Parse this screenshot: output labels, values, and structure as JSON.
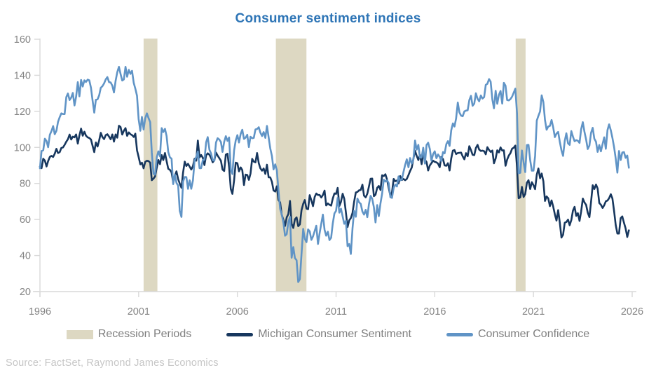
{
  "title": "Consumer sentiment indices",
  "source": "Source: FactSet, Raymond James Economics",
  "colors": {
    "title": "#2E75B6",
    "axis": "#D9D9D9",
    "tick_label": "#858585",
    "legend_text": "#7f7f7f",
    "source_text": "#C6C6C6",
    "recession_band": "#DDD8C2",
    "michigan_line": "#17375E",
    "confidence_line": "#6094C6"
  },
  "legend": [
    {
      "label": "Recession Periods",
      "type": "band",
      "color": "#DDD8C2"
    },
    {
      "label": "Michigan Consumer Sentiment",
      "type": "line",
      "color": "#17375E"
    },
    {
      "label": "Consumer Confidence",
      "type": "line",
      "color": "#6094C6"
    }
  ],
  "chart_data": {
    "type": "line",
    "title": "Consumer sentiment indices",
    "xlabel": "",
    "ylabel": "",
    "grid": false,
    "legend_position": "bottom",
    "x_range": [
      1996,
      2026
    ],
    "y_range": [
      20,
      160
    ],
    "x_ticks": [
      1996,
      2001,
      2006,
      2011,
      2016,
      2021,
      2026
    ],
    "y_ticks": [
      20,
      40,
      60,
      80,
      100,
      120,
      140,
      160
    ],
    "x_start": 1996.0,
    "x_step": 0.0833,
    "recession_periods": [
      [
        2001.25,
        2001.95
      ],
      [
        2007.95,
        2009.5
      ],
      [
        2020.1,
        2020.6
      ]
    ],
    "series": [
      {
        "name": "Michigan Consumer Sentiment",
        "color": "#17375E",
        "values": [
          89.3,
          88.5,
          93.7,
          92.7,
          89.4,
          92.4,
          94.7,
          95.3,
          94.7,
          96.5,
          99.2,
          96.9,
          97.4,
          99.7,
          100.0,
          101.4,
          103.2,
          104.5,
          107.1,
          104.4,
          106.0,
          105.6,
          107.2,
          102.1,
          106.6,
          110.4,
          106.5,
          108.7,
          106.5,
          105.6,
          105.2,
          104.4,
          100.9,
          97.4,
          102.7,
          100.5,
          103.9,
          108.1,
          105.7,
          104.6,
          106.8,
          107.3,
          106.0,
          104.5,
          107.2,
          103.2,
          107.2,
          105.4,
          112.0,
          111.3,
          107.1,
          109.2,
          110.7,
          106.4,
          108.3,
          107.3,
          106.8,
          105.8,
          107.6,
          98.4,
          94.7,
          90.6,
          91.5,
          88.4,
          92.0,
          92.6,
          92.4,
          91.5,
          81.8,
          82.7,
          83.9,
          88.8,
          93.0,
          90.7,
          95.7,
          93.0,
          96.9,
          92.4,
          88.1,
          87.6,
          86.1,
          80.6,
          84.2,
          86.7,
          82.4,
          79.9,
          77.6,
          86.0,
          92.1,
          89.7,
          90.9,
          89.3,
          87.7,
          89.6,
          93.7,
          92.6,
          103.8,
          94.4,
          95.8,
          94.2,
          90.2,
          95.6,
          96.7,
          95.9,
          94.2,
          91.7,
          92.8,
          97.1,
          95.5,
          94.1,
          92.6,
          87.7,
          86.9,
          96.0,
          96.5,
          89.1,
          76.9,
          74.2,
          81.6,
          91.5,
          91.2,
          86.7,
          88.9,
          87.4,
          79.1,
          84.9,
          84.7,
          82.0,
          85.4,
          93.6,
          92.1,
          91.7,
          96.9,
          91.3,
          88.4,
          87.1,
          88.3,
          85.3,
          90.4,
          83.4,
          83.4,
          80.9,
          76.1,
          75.5,
          78.4,
          70.8,
          69.5,
          62.6,
          59.8,
          56.4,
          61.2,
          63.0,
          70.3,
          57.6,
          55.3,
          60.1,
          61.2,
          56.3,
          57.3,
          65.1,
          68.7,
          70.8,
          66.0,
          65.7,
          73.5,
          70.6,
          67.4,
          72.5,
          74.4,
          73.6,
          73.6,
          72.2,
          73.6,
          76.0,
          67.8,
          68.9,
          68.2,
          67.7,
          71.6,
          74.5,
          74.2,
          77.5,
          67.5,
          69.8,
          74.3,
          71.5,
          63.7,
          55.8,
          59.5,
          60.8,
          63.7,
          69.9,
          75.0,
          75.3,
          76.2,
          76.4,
          79.3,
          73.2,
          72.3,
          74.3,
          78.3,
          82.6,
          82.7,
          72.9,
          73.8,
          77.6,
          78.6,
          76.4,
          84.5,
          84.1,
          85.1,
          82.1,
          77.5,
          73.2,
          75.1,
          82.5,
          81.2,
          81.6,
          80.0,
          84.1,
          81.9,
          82.5,
          81.8,
          82.5,
          84.6,
          86.9,
          88.8,
          93.6,
          98.1,
          95.4,
          93.0,
          95.9,
          90.7,
          96.1,
          93.1,
          91.9,
          87.2,
          90.0,
          91.3,
          92.6,
          92.0,
          91.7,
          91.0,
          89.0,
          94.7,
          93.5,
          90.0,
          89.8,
          91.2,
          87.2,
          93.8,
          98.2,
          98.5,
          96.3,
          96.9,
          97.0,
          97.1,
          95.0,
          93.4,
          96.8,
          95.1,
          100.7,
          98.5,
          95.9,
          95.7,
          99.7,
          101.4,
          98.8,
          98.0,
          98.2,
          97.9,
          96.2,
          100.1,
          98.6,
          97.5,
          98.3,
          91.2,
          93.8,
          98.4,
          97.2,
          100.0,
          98.2,
          98.4,
          89.8,
          93.2,
          95.5,
          96.8,
          99.3,
          99.8,
          101.0,
          89.1,
          71.8,
          72.3,
          78.1,
          72.5,
          74.1,
          80.4,
          81.8,
          76.9,
          80.7,
          79.0,
          76.8,
          84.9,
          88.3,
          82.9,
          85.5,
          81.2,
          70.3,
          72.8,
          71.7,
          67.4,
          70.6,
          67.2,
          62.8,
          59.4,
          65.2,
          58.4,
          50.0,
          51.5,
          58.2,
          58.6,
          59.9,
          56.8,
          59.7,
          64.9,
          67.0,
          62.0,
          63.5,
          59.2,
          64.4,
          71.6,
          69.5,
          68.1,
          63.8,
          61.3,
          69.7,
          79.0,
          76.9,
          79.4,
          77.2,
          69.1,
          68.2,
          66.4,
          67.9,
          70.1,
          70.5,
          71.8,
          74.0,
          71.7,
          64.7,
          57.0,
          52.2,
          52.2,
          60.7,
          61.7,
          58.2,
          55.1,
          50.3,
          54.0
        ]
      },
      {
        "name": "Consumer Confidence",
        "color": "#6094C6",
        "values": [
          88.4,
          98.0,
          98.4,
          104.8,
          103.5,
          100.1,
          107.0,
          109.0,
          111.8,
          107.3,
          109.2,
          114.2,
          116.8,
          118.9,
          118.5,
          118.5,
          127.9,
          129.9,
          126.3,
          127.6,
          130.2,
          123.3,
          128.1,
          136.2,
          128.3,
          137.4,
          133.8,
          137.2,
          136.3,
          137.6,
          137.2,
          133.1,
          126.0,
          119.3,
          126.4,
          126.7,
          128.9,
          133.1,
          134.0,
          135.5,
          137.7,
          139.0,
          136.2,
          136.0,
          134.2,
          130.5,
          137.0,
          141.7,
          144.7,
          140.8,
          137.1,
          137.7,
          144.7,
          139.2,
          143.0,
          140.8,
          142.5,
          135.8,
          132.6,
          128.6,
          115.7,
          109.2,
          116.9,
          109.9,
          116.1,
          118.9,
          116.3,
          114.0,
          97.0,
          85.3,
          84.9,
          94.6,
          97.8,
          95.0,
          110.7,
          108.5,
          110.3,
          106.3,
          97.4,
          94.5,
          93.7,
          79.6,
          84.9,
          80.3,
          78.8,
          64.8,
          61.4,
          81.0,
          83.6,
          83.5,
          77.0,
          81.7,
          77.0,
          81.7,
          92.5,
          94.8,
          97.7,
          88.5,
          88.5,
          93.0,
          93.1,
          102.8,
          105.7,
          98.7,
          96.7,
          92.9,
          92.6,
          102.7,
          105.1,
          104.4,
          103.0,
          97.5,
          103.1,
          106.2,
          103.6,
          105.5,
          87.5,
          85.2,
          98.3,
          103.8,
          106.8,
          102.7,
          107.5,
          109.8,
          104.7,
          105.4,
          107.0,
          100.2,
          105.9,
          105.1,
          105.3,
          110.0,
          110.2,
          111.2,
          108.2,
          106.3,
          108.5,
          105.3,
          111.9,
          105.6,
          99.5,
          95.2,
          87.8,
          90.6,
          87.3,
          76.4,
          65.9,
          62.8,
          58.1,
          51.0,
          51.9,
          58.5,
          61.4,
          38.8,
          44.7,
          38.6,
          37.4,
          25.3,
          26.9,
          40.8,
          54.8,
          49.3,
          47.4,
          54.5,
          53.4,
          48.7,
          50.6,
          53.6,
          56.5,
          46.4,
          52.3,
          57.7,
          62.7,
          54.3,
          51.0,
          53.2,
          48.6,
          49.9,
          57.8,
          63.4,
          64.8,
          72.0,
          63.8,
          66.0,
          61.7,
          57.6,
          59.2,
          45.2,
          46.4,
          40.9,
          55.2,
          64.8,
          61.5,
          71.6,
          69.5,
          68.7,
          64.4,
          62.7,
          65.4,
          61.3,
          68.4,
          73.1,
          71.5,
          66.7,
          58.4,
          68.0,
          61.9,
          69.0,
          74.3,
          82.1,
          81.0,
          81.8,
          80.2,
          72.4,
          72.0,
          77.5,
          79.4,
          78.3,
          83.9,
          81.7,
          82.2,
          86.4,
          90.3,
          93.4,
          89.0,
          94.1,
          91.0,
          93.1,
          103.8,
          98.8,
          101.4,
          94.3,
          94.6,
          99.8,
          91.0,
          101.3,
          102.6,
          99.1,
          92.6,
          96.3,
          97.8,
          94.0,
          96.1,
          94.7,
          92.4,
          97.4,
          96.7,
          101.8,
          103.5,
          100.8,
          109.4,
          113.3,
          111.6,
          116.1,
          124.9,
          119.4,
          117.6,
          117.3,
          120.0,
          120.4,
          120.6,
          126.2,
          128.6,
          123.1,
          124.3,
          130.0,
          127.0,
          125.6,
          128.8,
          127.1,
          127.9,
          134.7,
          135.3,
          137.9,
          136.4,
          126.6,
          121.7,
          131.4,
          124.2,
          129.2,
          131.3,
          124.3,
          135.8,
          134.2,
          126.3,
          126.1,
          126.8,
          128.2,
          130.4,
          132.6,
          118.8,
          85.7,
          85.9,
          98.3,
          91.7,
          86.3,
          101.3,
          101.4,
          92.9,
          87.1,
          87.1,
          95.2,
          114.9,
          117.5,
          120.0,
          128.9,
          125.1,
          115.2,
          109.8,
          111.6,
          111.9,
          115.2,
          111.1,
          105.7,
          107.6,
          108.6,
          103.2,
          98.4,
          95.3,
          103.6,
          107.8,
          102.2,
          101.4,
          109.0,
          106.0,
          103.4,
          104.0,
          103.7,
          102.5,
          110.1,
          114.0,
          108.7,
          104.3,
          99.1,
          101.0,
          108.0,
          110.9,
          104.8,
          103.1,
          97.5,
          101.3,
          97.8,
          101.9,
          105.6,
          99.2,
          109.6,
          112.8,
          109.5,
          105.3,
          100.1,
          93.9,
          86.0,
          98.0,
          93.0,
          97.2,
          97.4,
          94.2,
          95.5,
          88.7
        ]
      }
    ]
  }
}
